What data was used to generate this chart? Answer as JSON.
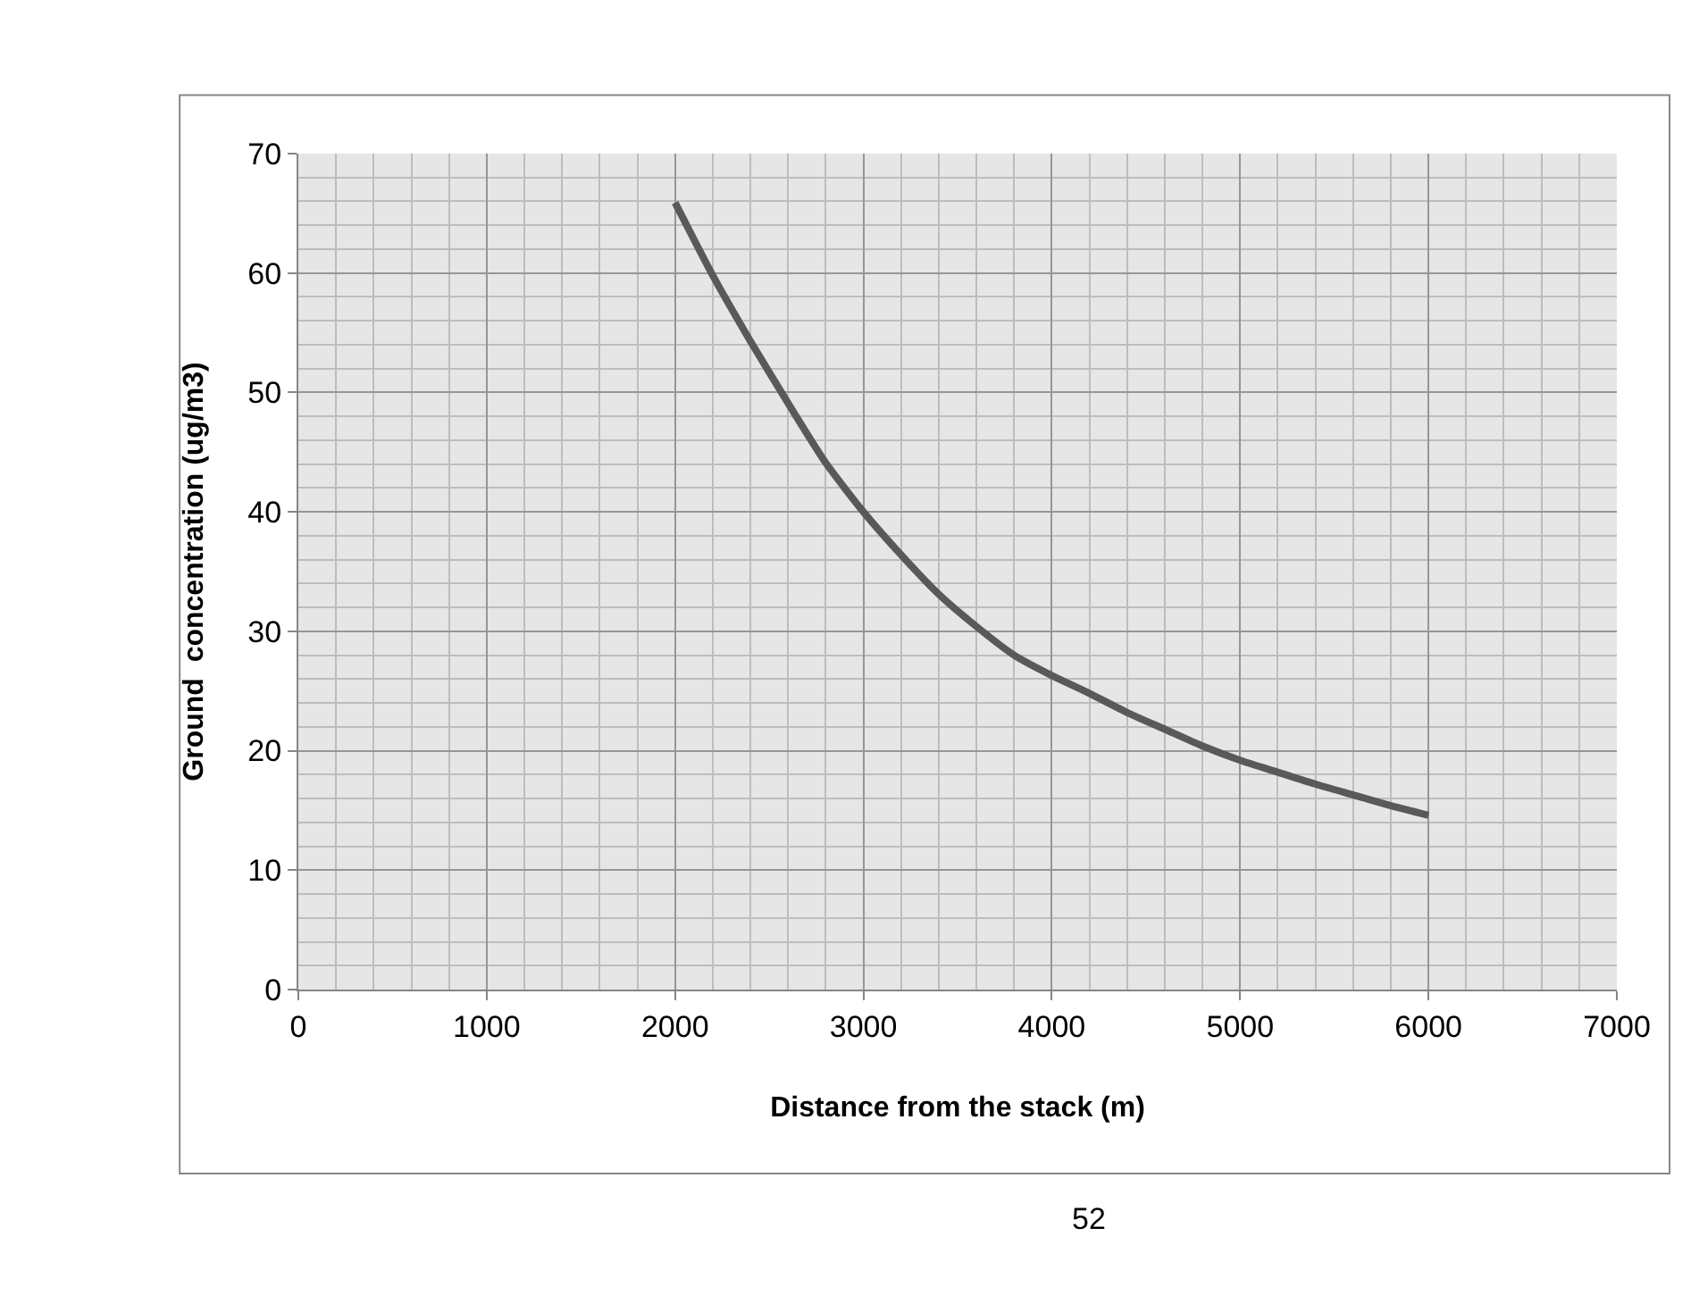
{
  "chart_data": {
    "type": "line",
    "xlabel": "Distance from the stack (m)",
    "ylabel": "Ground  concentration (ug/m3)",
    "x": [
      2000,
      2200,
      2400,
      2600,
      2800,
      3000,
      3200,
      3400,
      3600,
      3800,
      4000,
      4200,
      4400,
      4600,
      4800,
      5000,
      5200,
      5400,
      5600,
      5800,
      6000
    ],
    "series": [
      {
        "color": "#595959",
        "values": [
          65.9,
          59.8,
          54.3,
          49.1,
          44.1,
          40.0,
          36.4,
          33.1,
          30.4,
          28.0,
          26.3,
          24.8,
          23.2,
          21.8,
          20.4,
          19.2,
          18.2,
          17.2,
          16.3,
          15.4,
          14.6
        ]
      }
    ],
    "xlim": [
      0,
      7000
    ],
    "xticks": [
      0,
      1000,
      2000,
      3000,
      4000,
      5000,
      6000,
      7000
    ],
    "ylim": [
      0,
      70
    ],
    "yticks": [
      0,
      10,
      20,
      30,
      40,
      50,
      60,
      70
    ],
    "grid": true,
    "marker": "none",
    "line_style": "solid",
    "annotations": [
      "52"
    ]
  }
}
